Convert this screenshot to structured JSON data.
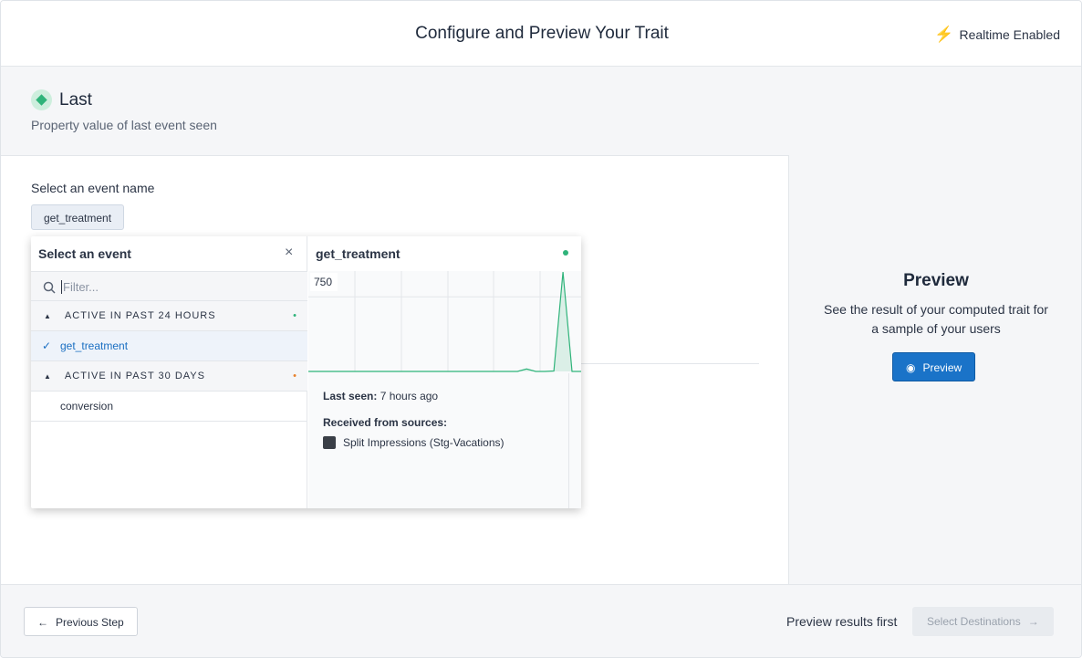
{
  "header": {
    "title": "Configure and Preview Your Trait",
    "status": "Realtime Enabled"
  },
  "trait": {
    "name": "Last",
    "description": "Property value of last event seen"
  },
  "event_select": {
    "label": "Select an event name",
    "selected": "get_treatment"
  },
  "dropdown": {
    "title": "Select an event",
    "filter_placeholder": "Filter...",
    "groups": [
      {
        "label": "ACTIVE IN PAST 24 HOURS",
        "events": [
          "get_treatment"
        ]
      },
      {
        "label": "ACTIVE IN PAST 30 DAYS",
        "events": [
          "conversion"
        ]
      }
    ]
  },
  "detail": {
    "event": "get_treatment",
    "chart": {
      "type": "line",
      "ylim": [
        0,
        1000
      ],
      "yticks": [
        750
      ],
      "color": "#2fb37a",
      "values": [
        0,
        0,
        0,
        0,
        0,
        0,
        0,
        0,
        0,
        0,
        0,
        0,
        0,
        0,
        0,
        0,
        0,
        0,
        0,
        0,
        0,
        0,
        0,
        0,
        25,
        0,
        0,
        5,
        1000,
        0,
        0
      ]
    },
    "last_seen_label": "Last seen:",
    "last_seen": "7 hours ago",
    "sources_label": "Received from sources:",
    "sources": [
      "Split Impressions (Stg-Vacations)"
    ]
  },
  "preview": {
    "title": "Preview",
    "description": "See the result of your computed trait for a sample of your users",
    "button": "Preview"
  },
  "footer": {
    "back": "Previous Step",
    "hint": "Preview results first",
    "next": "Select Destinations"
  }
}
